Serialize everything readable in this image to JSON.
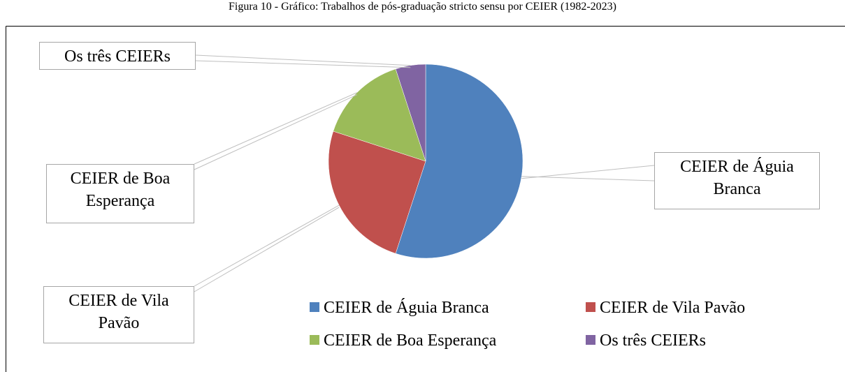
{
  "title": "Figura 10 - Gráfico: Trabalhos de pós-graduação stricto sensu por CEIER (1982-2023)",
  "chart_data": {
    "type": "pie",
    "categories": [
      "CEIER de Águia Branca",
      "CEIER de Vila Pavão",
      "CEIER de Boa Esperança",
      "Os três CEIERs"
    ],
    "values": [
      55,
      25,
      15,
      5
    ],
    "colors": [
      "#4f81bd",
      "#c0504d",
      "#9bbb59",
      "#8064a2"
    ],
    "legend": "bottom"
  }
}
